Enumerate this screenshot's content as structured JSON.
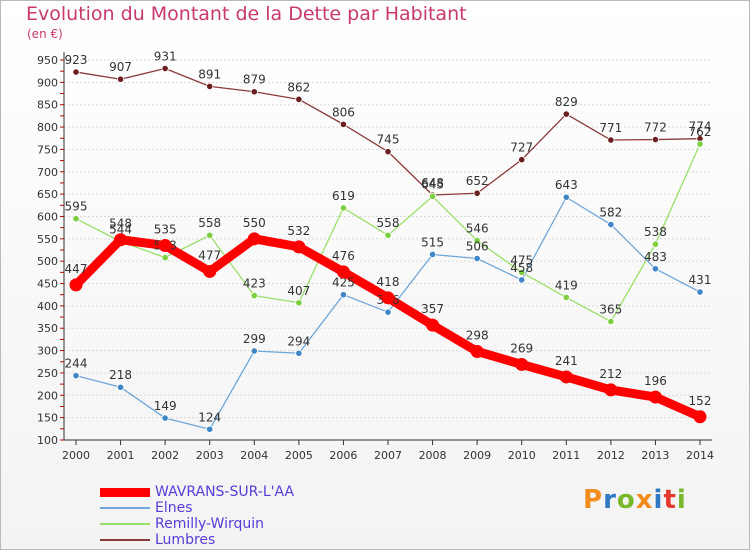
{
  "title": "Evolution du Montant de la Dette par Habitant",
  "subtitle": "(en €)",
  "brand": {
    "letters": [
      "P",
      "r",
      "o",
      "x",
      "i",
      "t",
      "i"
    ],
    "colors": [
      "#f28c1c",
      "#2f78c4",
      "#79b82b",
      "#f28c1c",
      "#2f78c4",
      "#e63a2e",
      "#79b82b"
    ]
  },
  "chart_data": {
    "type": "line",
    "title": "Evolution du Montant de la Dette par Habitant",
    "ylabel": "(en €)",
    "x": [
      2000,
      2001,
      2002,
      2003,
      2004,
      2005,
      2006,
      2007,
      2008,
      2009,
      2010,
      2011,
      2012,
      2013,
      2014
    ],
    "ylim": [
      100,
      950
    ],
    "yticks": [
      100,
      150,
      200,
      250,
      300,
      350,
      400,
      450,
      500,
      550,
      600,
      650,
      700,
      750,
      800,
      850,
      900,
      950
    ],
    "grid": "horizontal",
    "legend_position": "bottom-left",
    "series": [
      {
        "name": "Lumbres",
        "color": "#8b3a3a",
        "marker": "#6b1f1f",
        "values": [
          923,
          907,
          931,
          891,
          879,
          862,
          806,
          745,
          648,
          652,
          727,
          829,
          771,
          772,
          774
        ]
      },
      {
        "name": "Remilly-Wirquin",
        "color": "#99e06a",
        "marker": "#7ccf3e",
        "values": [
          595,
          544,
          508,
          558,
          423,
          407,
          619,
          558,
          645,
          546,
          475,
          419,
          365,
          538,
          762
        ]
      },
      {
        "name": "Elnes",
        "color": "#6ea7d8",
        "marker": "#3f86c6",
        "values": [
          244,
          218,
          149,
          124,
          299,
          294,
          425,
          386,
          515,
          506,
          458,
          643,
          582,
          483,
          431
        ]
      },
      {
        "name": "WAVRANS-SUR-L'AA",
        "color": "#ff0000",
        "marker": "#ff0000",
        "values": [
          447,
          548,
          535,
          477,
          550,
          532,
          476,
          418,
          357,
          298,
          269,
          241,
          212,
          196,
          152
        ]
      }
    ]
  }
}
